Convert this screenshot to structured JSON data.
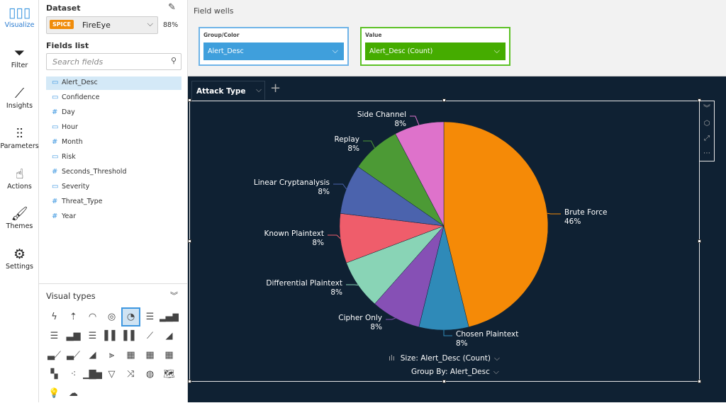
{
  "rail": [
    {
      "label": "Visualize",
      "icon": "bar-chart-icon"
    },
    {
      "label": "Filter",
      "icon": "filter-icon"
    },
    {
      "label": "Insights",
      "icon": "insights-icon"
    },
    {
      "label": "Parameters",
      "icon": "sliders-icon"
    },
    {
      "label": "Actions",
      "icon": "pointer-gear-icon"
    },
    {
      "label": "Themes",
      "icon": "brush-icon"
    },
    {
      "label": "Settings",
      "icon": "gear-icon"
    }
  ],
  "dataset": {
    "heading": "Dataset",
    "badge": "SPICE",
    "name": "FireEye",
    "percent": "88%"
  },
  "fields": {
    "heading": "Fields list",
    "placeholder": "Search fields",
    "items": [
      {
        "label": "Alert_Desc",
        "type": "dimension"
      },
      {
        "label": "Confidence",
        "type": "dimension"
      },
      {
        "label": "Day",
        "type": "measure"
      },
      {
        "label": "Hour",
        "type": "dimension"
      },
      {
        "label": "Month",
        "type": "measure"
      },
      {
        "label": "Risk",
        "type": "dimension"
      },
      {
        "label": "Seconds_Threshold",
        "type": "measure"
      },
      {
        "label": "Severity",
        "type": "dimension"
      },
      {
        "label": "Threat_Type",
        "type": "measure"
      },
      {
        "label": "Year",
        "type": "measure"
      }
    ]
  },
  "visual_types": {
    "heading": "Visual types",
    "selected": "pie"
  },
  "wells": {
    "title": "Field wells",
    "group": {
      "label": "Group/Color",
      "value": "Alert_Desc",
      "color": "#3f9fdc"
    },
    "value": {
      "label": "Value",
      "value": "Alert_Desc (Count)",
      "color": "#45ac00"
    }
  },
  "sheet_tab": "Attack Type",
  "visual": {
    "size_by": "Size: Alert_Desc (Count)",
    "group_by": "Group By: Alert_Desc"
  },
  "chart_data": {
    "type": "pie",
    "title": "",
    "slices": [
      {
        "label": "Brute Force",
        "pct": "46%",
        "value": 6,
        "color": "#f58a07"
      },
      {
        "label": "Chosen Plaintext",
        "pct": "8%",
        "value": 1,
        "color": "#2f8ab8"
      },
      {
        "label": "Cipher Only",
        "pct": "8%",
        "value": 1,
        "color": "#8650b5"
      },
      {
        "label": "Differential Plaintext",
        "pct": "8%",
        "value": 1,
        "color": "#89d4b6"
      },
      {
        "label": "Known Plaintext",
        "pct": "8%",
        "value": 1,
        "color": "#ef5d6b"
      },
      {
        "label": "Linear Cryptanalysis",
        "pct": "8%",
        "value": 1,
        "color": "#4b63ad"
      },
      {
        "label": "Replay",
        "pct": "8%",
        "value": 1,
        "color": "#4c9a35"
      },
      {
        "label": "Side Channel",
        "pct": "8%",
        "value": 1,
        "color": "#de72cb"
      }
    ]
  }
}
